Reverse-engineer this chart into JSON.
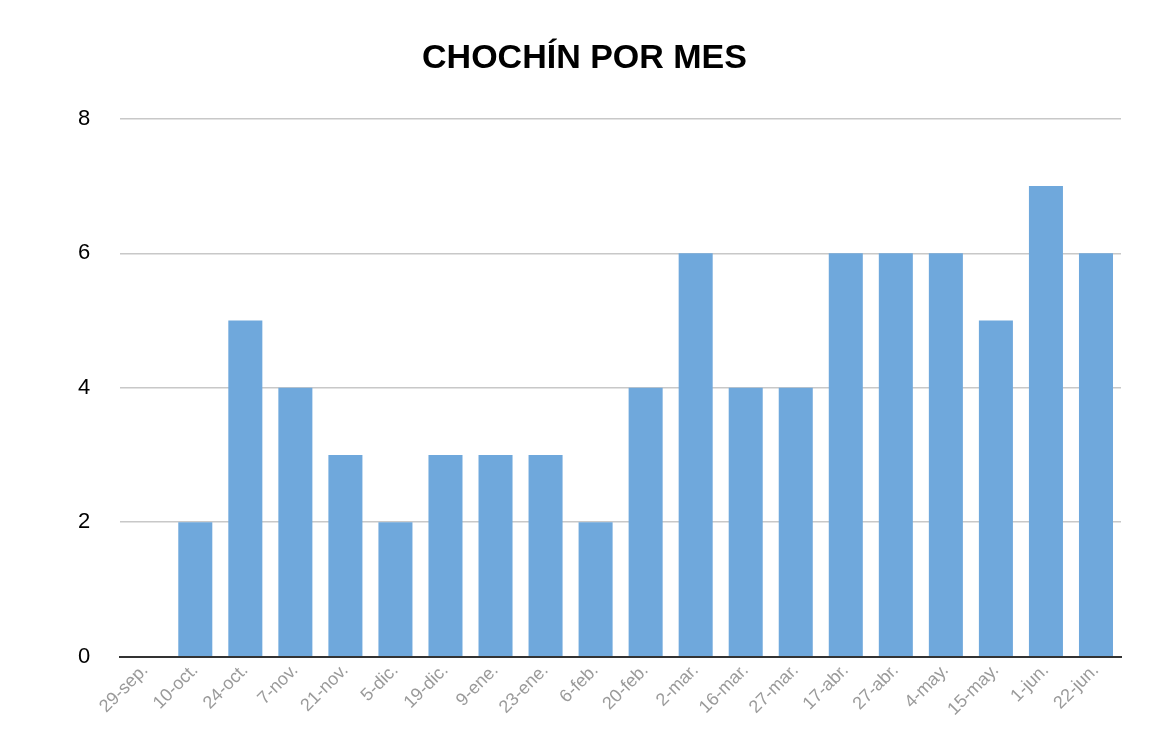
{
  "chart_data": {
    "type": "bar",
    "title": "CHOCHÍN POR MES",
    "categories": [
      "29-sep.",
      "10-oct.",
      "24-oct.",
      "7-nov.",
      "21-nov.",
      "5-dic.",
      "19-dic.",
      "9-ene.",
      "23-ene.",
      "6-feb.",
      "20-feb.",
      "2-mar.",
      "16-mar.",
      "27-mar.",
      "17-abr.",
      "27-abr.",
      "4-may.",
      "15-may.",
      "1-jun.",
      "22-jun."
    ],
    "values": [
      0,
      2,
      5,
      4,
      3,
      2,
      3,
      3,
      3,
      2,
      4,
      6,
      4,
      4,
      6,
      6,
      6,
      5,
      7,
      6
    ],
    "color": "#6fa8dc",
    "ylim": [
      0,
      8
    ],
    "yticks": [
      0,
      2,
      4,
      6,
      8
    ],
    "grid": "y",
    "legend": false
  }
}
